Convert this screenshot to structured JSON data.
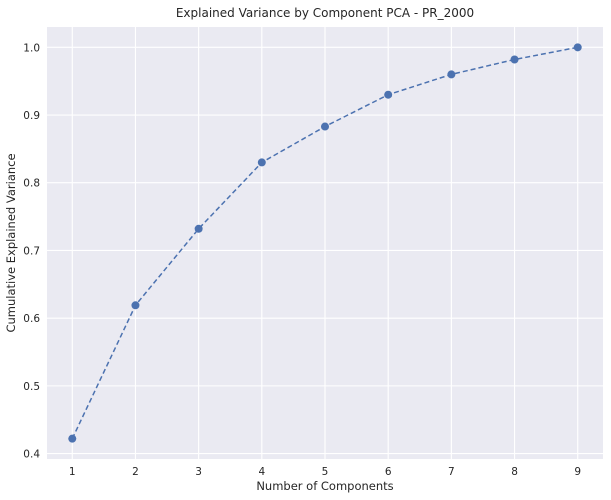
{
  "chart_data": {
    "type": "line",
    "title": "Explained Variance by Component PCA - PR_2000",
    "xlabel": "Number of Components",
    "ylabel": "Cumulative Explained Variance",
    "x": [
      1,
      2,
      3,
      4,
      5,
      6,
      7,
      8,
      9
    ],
    "series": [
      {
        "values": [
          0.422,
          0.619,
          0.732,
          0.83,
          0.883,
          0.93,
          0.96,
          0.982,
          1.0
        ]
      }
    ],
    "xticks": [
      1,
      2,
      3,
      4,
      5,
      6,
      7,
      8,
      9
    ],
    "yticks": [
      0.4,
      0.5,
      0.6,
      0.7,
      0.8,
      0.9,
      1.0
    ],
    "xlim": [
      0.6,
      9.4
    ],
    "ylim": [
      0.392,
      1.03
    ],
    "grid": true,
    "line_style": "dashed",
    "marker": "circle",
    "colors": {
      "line": "#4c72b0",
      "plot_background": "#eaeaf2",
      "grid": "#ffffff"
    }
  }
}
